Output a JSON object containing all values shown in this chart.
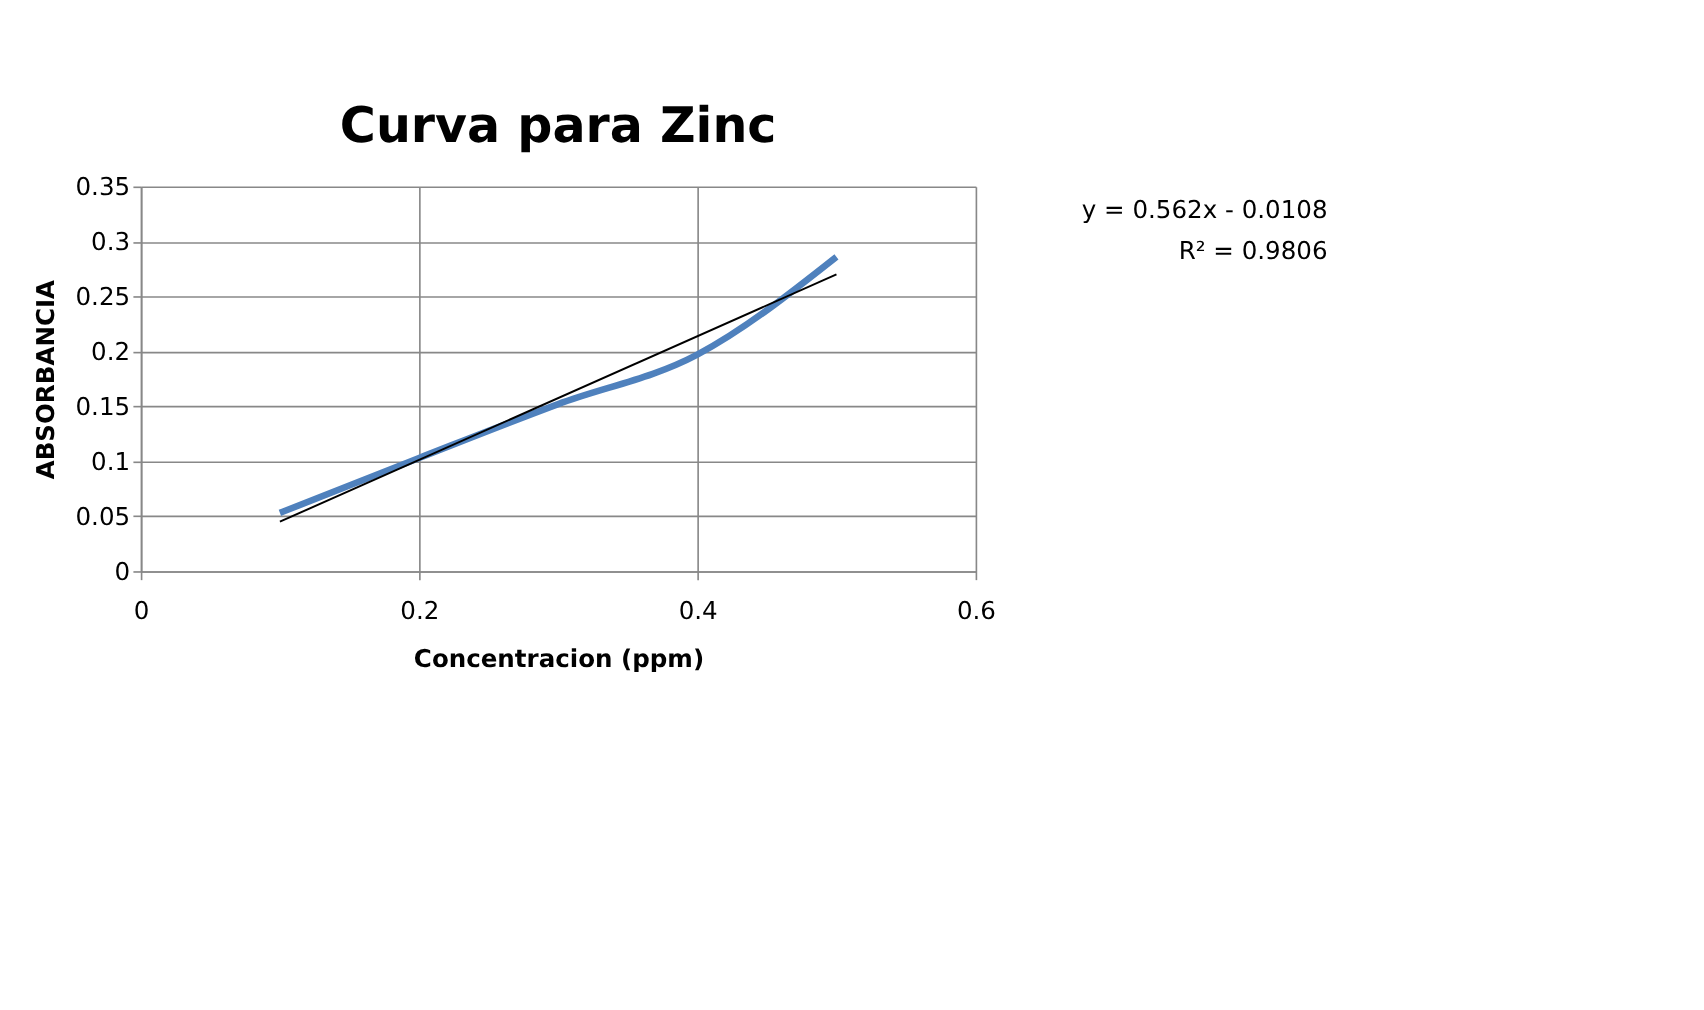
{
  "chart_data": {
    "type": "line",
    "title": "Curva para Zinc",
    "xlabel": "Concentracion (ppm)",
    "ylabel": "ABSORBANCIA",
    "series": [
      {
        "color": "#4f81bd",
        "x": [
          0.1,
          0.2,
          0.3,
          0.4,
          0.5
        ],
        "values": [
          0.053,
          0.103,
          0.152,
          0.197,
          0.286
        ]
      },
      {
        "color": "#000000",
        "x": [
          0.1,
          0.5
        ],
        "values": [
          0.045,
          0.27
        ]
      }
    ],
    "annotations": [
      "y = 0.562x - 0.0108",
      "R² = 0.9806"
    ],
    "xlim": [
      0,
      0.6
    ],
    "xticks": [
      0,
      0.2,
      0.4,
      0.6
    ],
    "ylim": [
      0,
      0.35
    ],
    "yticks": [
      0,
      0.05,
      0.1,
      0.15,
      0.2,
      0.25,
      0.3,
      0.35
    ],
    "grid": true
  }
}
